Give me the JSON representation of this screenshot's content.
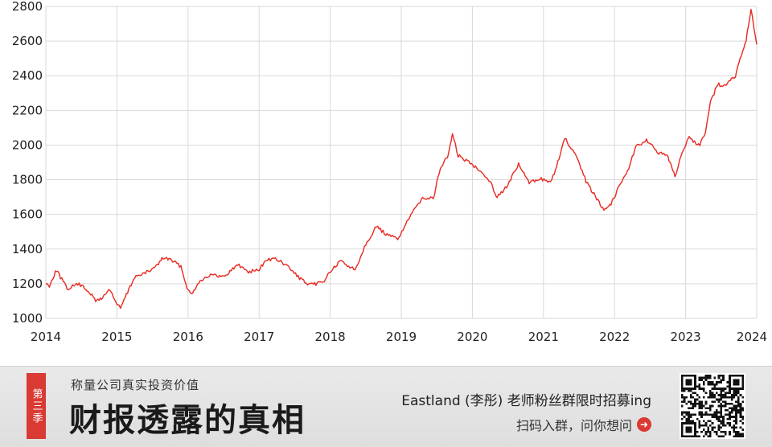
{
  "chart_data": {
    "type": "line",
    "title": "",
    "xlabel": "",
    "ylabel": "",
    "x_ticks": [
      "2014",
      "2015",
      "2016",
      "2017",
      "2018",
      "2019",
      "2020",
      "2021",
      "2022",
      "2023",
      "2024"
    ],
    "y_ticks": [
      1000,
      1200,
      1400,
      1600,
      1800,
      2000,
      2200,
      2400,
      2600,
      2800
    ],
    "xlim": [
      2014,
      2024
    ],
    "ylim": [
      1000,
      2800
    ],
    "grid": true,
    "line_color": "#e8281f",
    "series": [
      {
        "x": [
          2014.0,
          2014.05,
          2014.15,
          2014.3,
          2014.45,
          2014.6,
          2014.7,
          2014.8,
          2014.9,
          2015.0,
          2015.05,
          2015.15,
          2015.25,
          2015.4,
          2015.55,
          2015.65,
          2015.75,
          2015.9,
          2016.0,
          2016.05,
          2016.15,
          2016.3,
          2016.5,
          2016.7,
          2016.85,
          2017.0,
          2017.1,
          2017.25,
          2017.4,
          2017.55,
          2017.7,
          2017.8,
          2017.9,
          2018.0,
          2018.15,
          2018.35,
          2018.5,
          2018.65,
          2018.8,
          2018.95,
          2019.1,
          2019.3,
          2019.45,
          2019.55,
          2019.65,
          2019.72,
          2019.8,
          2019.95,
          2020.1,
          2020.25,
          2020.35,
          2020.5,
          2020.65,
          2020.8,
          2020.95,
          2021.1,
          2021.22,
          2021.3,
          2021.45,
          2021.6,
          2021.75,
          2021.85,
          2021.95,
          2022.05,
          2022.2,
          2022.3,
          2022.45,
          2022.6,
          2022.75,
          2022.85,
          2022.95,
          2023.05,
          2023.2,
          2023.28,
          2023.35,
          2023.45,
          2023.55,
          2023.7,
          2023.8,
          2023.85,
          2023.92,
          2024.0
        ],
        "y": [
          1200,
          1190,
          1280,
          1170,
          1200,
          1160,
          1100,
          1120,
          1170,
          1080,
          1060,
          1150,
          1240,
          1260,
          1300,
          1350,
          1340,
          1300,
          1160,
          1140,
          1210,
          1250,
          1240,
          1310,
          1270,
          1280,
          1340,
          1340,
          1300,
          1240,
          1190,
          1200,
          1210,
          1270,
          1330,
          1280,
          1430,
          1530,
          1480,
          1460,
          1570,
          1700,
          1690,
          1870,
          1930,
          2060,
          1940,
          1900,
          1860,
          1790,
          1700,
          1770,
          1890,
          1780,
          1810,
          1780,
          1920,
          2040,
          1940,
          1790,
          1690,
          1630,
          1660,
          1750,
          1870,
          1990,
          2030,
          1960,
          1930,
          1820,
          1960,
          2040,
          2000,
          2080,
          2250,
          2350,
          2340,
          2400,
          2540,
          2600,
          2780,
          2580
        ]
      }
    ]
  },
  "banner": {
    "season_badge": "第三季",
    "slogan": "称量公司真实投资价值",
    "program_title": "财报透露的真相",
    "recruit_text": "Eastland (李彤) 老师粉丝群限时招募ing",
    "cta_text": "扫码入群，问你想问",
    "cta_icon": "arrow-right-circle-icon",
    "accent_color": "#d93a33"
  }
}
